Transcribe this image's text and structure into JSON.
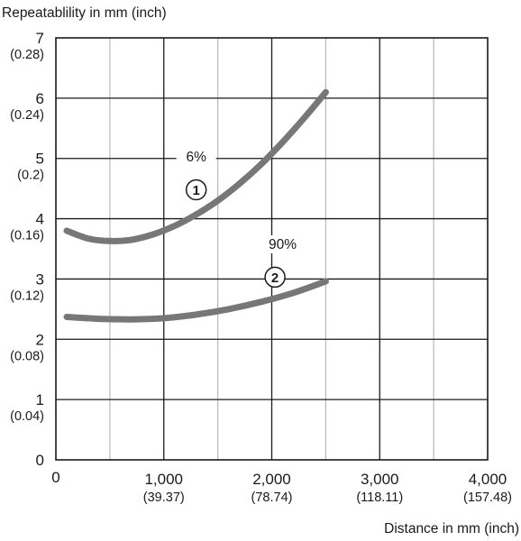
{
  "chart_data": {
    "type": "line",
    "ylabel": "Repeatablility in mm (inch)",
    "xlabel": "Distance in mm (inch)",
    "xlim": [
      0,
      4000
    ],
    "ylim": [
      0,
      7
    ],
    "grid": true,
    "x_ticks": [
      {
        "value": 1000,
        "label": "1,000",
        "sublabel": "(39.37)"
      },
      {
        "value": 2000,
        "label": "2,000",
        "sublabel": "(78.74)"
      },
      {
        "value": 3000,
        "label": "3,000",
        "sublabel": "(118.11)"
      },
      {
        "value": 4000,
        "label": "4,000",
        "sublabel": "(157.48)"
      }
    ],
    "x_origin_label": "0",
    "y_ticks": [
      {
        "value": 0,
        "label": "0",
        "sublabel": ""
      },
      {
        "value": 1,
        "label": "1",
        "sublabel": "(0.04)"
      },
      {
        "value": 2,
        "label": "2",
        "sublabel": "(0.08)"
      },
      {
        "value": 3,
        "label": "3",
        "sublabel": "(0.12)"
      },
      {
        "value": 4,
        "label": "4",
        "sublabel": "(0.16)"
      },
      {
        "value": 5,
        "label": "5",
        "sublabel": "(0.2)"
      },
      {
        "value": 6,
        "label": "6",
        "sublabel": "(0.24)"
      },
      {
        "value": 7,
        "label": "7",
        "sublabel": "(0.28)"
      }
    ],
    "series": [
      {
        "name": "6%",
        "marker": "1",
        "color": "#777777",
        "x": [
          100,
          300,
          500,
          700,
          900,
          1100,
          1300,
          1500,
          1700,
          1900,
          2100,
          2300,
          2500
        ],
        "y": [
          3.8,
          3.67,
          3.63,
          3.65,
          3.74,
          3.88,
          4.07,
          4.3,
          4.58,
          4.9,
          5.27,
          5.67,
          6.1
        ]
      },
      {
        "name": "90%",
        "marker": "2",
        "color": "#777777",
        "x": [
          100,
          400,
          700,
          1000,
          1300,
          1600,
          1900,
          2200,
          2500
        ],
        "y": [
          2.37,
          2.34,
          2.33,
          2.35,
          2.41,
          2.5,
          2.62,
          2.77,
          2.96
        ]
      }
    ]
  }
}
